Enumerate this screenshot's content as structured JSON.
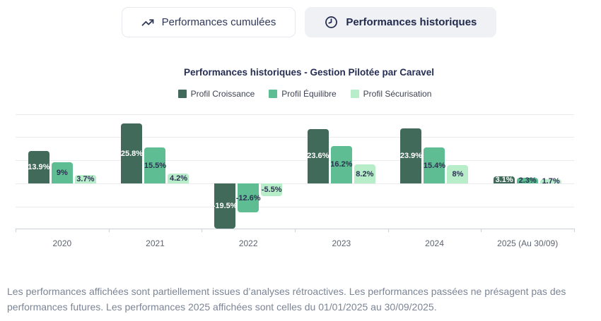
{
  "tabs": [
    {
      "label": "Performances cumulées",
      "icon": "trending-up-icon",
      "active": false
    },
    {
      "label": "Performances historiques",
      "icon": "clock-icon",
      "active": true
    }
  ],
  "chart_data": {
    "type": "bar",
    "title": "Performances historiques - Gestion Pilotée par Caravel",
    "categories": [
      "2020",
      "2021",
      "2022",
      "2023",
      "2024",
      "2025 (Au 30/09)"
    ],
    "series": [
      {
        "name": "Profil Croissance",
        "color": "#426a5b",
        "label_color": "#ffffff",
        "values": [
          13.9,
          25.8,
          -19.5,
          23.6,
          23.9,
          3.1
        ],
        "labels": [
          "13.9%",
          "25.8%",
          "-19.5%",
          "23.6%",
          "23.9%",
          "3.1%"
        ]
      },
      {
        "name": "Profil Équilibre",
        "color": "#5ebd92",
        "label_color": "#2b3150",
        "values": [
          9,
          15.5,
          -12.6,
          16.2,
          15.4,
          2.3
        ],
        "labels": [
          "9%",
          "15.5%",
          "-12.6%",
          "16.2%",
          "15.4%",
          "2.3%"
        ]
      },
      {
        "name": "Profil Sécurisation",
        "color": "#b8edca",
        "label_color": "#2b3150",
        "values": [
          3.7,
          4.2,
          -5.5,
          8.2,
          8,
          1.7
        ],
        "labels": [
          "3.7%",
          "4.2%",
          "-5.5%",
          "8.2%",
          "8%",
          "1.7%"
        ]
      }
    ],
    "gridline_values": [
      30,
      20,
      10,
      0,
      -10
    ],
    "ylim": [
      -20,
      32
    ],
    "grid": true,
    "legend_position": "top",
    "xlabel": "",
    "ylabel": ""
  },
  "disclaimer": "Les performances affichées sont partiellement issues d’analyses rétroactives. Les performances passées ne présagent pas des performances futures. Les performances 2025 affichées sont celles du 01/01/2025 au 30/09/2025."
}
